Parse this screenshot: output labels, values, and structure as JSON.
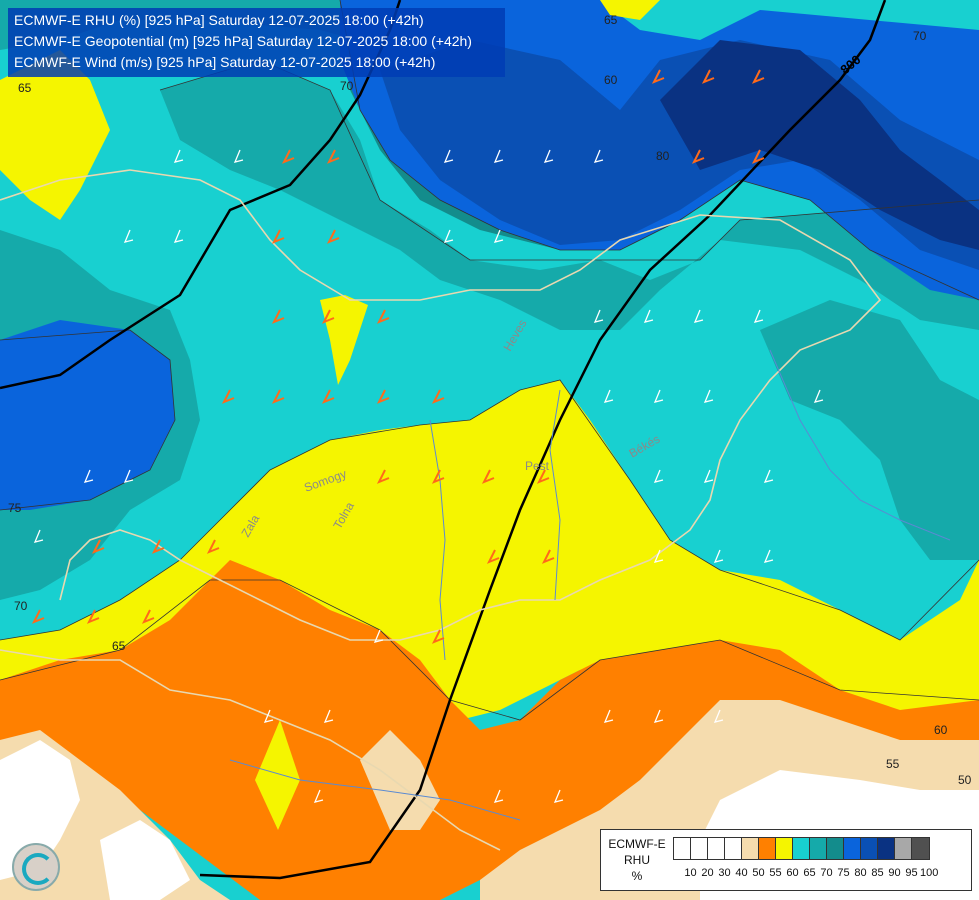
{
  "header": {
    "line1": "ECMWF-E RHU (%) [925 hPa] Saturday 12-07-2025 18:00 (+42h)",
    "line2": "ECMWF-E Geopotential (m) [925 hPa] Saturday 12-07-2025 18:00 (+42h)",
    "line3": "ECMWF-E Wind (m/s) [925 hPa] Saturday 12-07-2025 18:00 (+42h)"
  },
  "legend": {
    "title_line1": "ECMWF-E",
    "title_line2": "RHU",
    "title_line3": "%",
    "ticks": [
      "10",
      "20",
      "30",
      "40",
      "50",
      "55",
      "60",
      "65",
      "70",
      "75",
      "80",
      "85",
      "90",
      "95",
      "100"
    ],
    "colors": [
      "#ffffff",
      "#ffffff",
      "#ffffff",
      "#ffffff",
      "#f5dcae",
      "#ff8000",
      "#f5f500",
      "#18d0d0",
      "#15aaaa",
      "#138c8c",
      "#0a64dc",
      "#0a50b4",
      "#0a3282",
      "#a8a8a8",
      "#505050"
    ]
  },
  "map": {
    "colors": {
      "rh_50": "#f5dcae",
      "rh_55": "#ff8000",
      "rh_60": "#f5f500",
      "rh_65": "#18d0d0",
      "rh_70": "#15aaaa",
      "rh_75": "#138c8c",
      "rh_80": "#0a64dc",
      "rh_85": "#0a50b4",
      "rh_90": "#0a3282",
      "geopotential_line": "#000000",
      "wind_barb_light": "#ffffff",
      "wind_barb_strong": "#ff6a1a",
      "border": "#e8d8b0",
      "river": "#5a8ad2"
    },
    "contour_labels": [
      "65",
      "70",
      "75",
      "65",
      "70",
      "65",
      "60",
      "55",
      "50",
      "60",
      "70",
      "80"
    ],
    "geopotential_label": "800",
    "place_labels": [
      "Pest",
      "Békés",
      "Heves",
      "Somogy",
      "Tolna",
      "Zala"
    ]
  }
}
